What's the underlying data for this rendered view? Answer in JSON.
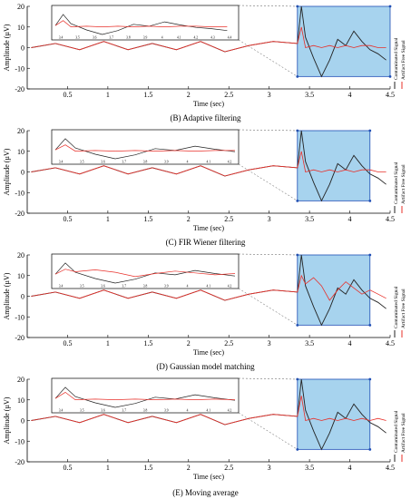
{
  "figure": {
    "panels": [
      {
        "caption": "(B) Adaptive filtering"
      },
      {
        "caption": "(C) FIR Wiener filtering"
      },
      {
        "caption": "(D) Gaussian model matching"
      },
      {
        "caption": "(E) Moving average"
      }
    ]
  },
  "chart_data": [
    {
      "type": "line",
      "title": "(B) Adaptive filtering",
      "xlabel": "Time (sec)",
      "ylabel": "Amplitude (µV)",
      "xlim": [
        0,
        4.5
      ],
      "ylim": [
        -20,
        20
      ],
      "xticks": [
        0.5,
        1,
        1.5,
        2,
        2.5,
        3,
        3.5,
        4,
        4.5
      ],
      "yticks": [
        -20,
        -10,
        0,
        10,
        20
      ],
      "legend": {
        "placement": "right-vertical",
        "entries": [
          "Contaminated Signal",
          "Artifact Free Signal"
        ]
      },
      "inset": {
        "xlim": [
          3.35,
          4.5
        ],
        "colors": {
          "zoom_box": "#a7d3ee"
        },
        "tick_labels": [
          "3.4",
          "3.5",
          "3.6",
          "3.7",
          "3.8",
          "3.9",
          "4",
          "4.1",
          "4.2",
          "4.3",
          "4.4"
        ]
      },
      "series": [
        {
          "name": "Contaminated Signal",
          "color": "#222222",
          "x": [
            0.05,
            0.35,
            0.65,
            0.95,
            1.25,
            1.55,
            1.85,
            2.15,
            2.45,
            2.75,
            3.05,
            3.35,
            3.4,
            3.45,
            3.55,
            3.65,
            3.75,
            3.85,
            3.95,
            4.05,
            4.15,
            4.25,
            4.35,
            4.45
          ],
          "y": [
            0,
            2,
            -1,
            3,
            -1,
            2,
            -1,
            3,
            -2,
            1,
            3,
            2,
            20,
            5,
            -5,
            -14,
            -6,
            4,
            1,
            8,
            3,
            -1,
            -3,
            -6
          ]
        },
        {
          "name": "Artifact Free Signal",
          "color": "#e8302a",
          "x": [
            0.05,
            0.35,
            0.65,
            0.95,
            1.25,
            1.55,
            1.85,
            2.15,
            2.45,
            2.75,
            3.05,
            3.35,
            3.4,
            3.45,
            3.55,
            3.65,
            3.75,
            3.85,
            3.95,
            4.05,
            4.15,
            4.25,
            4.35,
            4.45
          ],
          "y": [
            0,
            2,
            -1,
            3,
            -1,
            2,
            -1,
            3,
            -2,
            1,
            3,
            2,
            10,
            0,
            1,
            0,
            1,
            0,
            1,
            0,
            1,
            1,
            0,
            0
          ]
        }
      ]
    },
    {
      "type": "line",
      "title": "(C) FIR Wiener filtering",
      "xlabel": "Time (sec)",
      "ylabel": "Amplitude (µV)",
      "xlim": [
        0,
        4.5
      ],
      "ylim": [
        -20,
        20
      ],
      "xticks": [
        0.5,
        1,
        1.5,
        2,
        2.5,
        3,
        3.5,
        4,
        4.5
      ],
      "yticks": [
        -20,
        -10,
        0,
        10,
        20
      ],
      "legend": {
        "placement": "right-vertical",
        "entries": [
          "Contaminated Signal",
          "Artifact Free Signal"
        ]
      },
      "inset": {
        "xlim": [
          3.35,
          4.25
        ],
        "colors": {
          "zoom_box": "#a7d3ee"
        },
        "tick_labels": [
          "3.4",
          "3.5",
          "3.6",
          "3.7",
          "3.8",
          "3.9",
          "4",
          "4.1",
          "4.2"
        ]
      },
      "series": [
        {
          "name": "Contaminated Signal",
          "color": "#222222",
          "x": [
            0.05,
            0.35,
            0.65,
            0.95,
            1.25,
            1.55,
            1.85,
            2.15,
            2.45,
            2.75,
            3.05,
            3.35,
            3.4,
            3.45,
            3.55,
            3.65,
            3.75,
            3.85,
            3.95,
            4.05,
            4.15,
            4.25,
            4.35,
            4.45
          ],
          "y": [
            0,
            2,
            -1,
            3,
            -1,
            2,
            -1,
            3,
            -2,
            1,
            3,
            2,
            20,
            5,
            -5,
            -14,
            -6,
            4,
            1,
            8,
            3,
            -1,
            -3,
            -6
          ]
        },
        {
          "name": "Artifact Free Signal",
          "color": "#e8302a",
          "x": [
            0.05,
            0.35,
            0.65,
            0.95,
            1.25,
            1.55,
            1.85,
            2.15,
            2.45,
            2.75,
            3.05,
            3.35,
            3.4,
            3.45,
            3.55,
            3.65,
            3.75,
            3.85,
            3.95,
            4.05,
            4.15,
            4.25,
            4.35,
            4.45
          ],
          "y": [
            0,
            2,
            -1,
            3,
            -1,
            2,
            -1,
            3,
            -2,
            1,
            3,
            2,
            10,
            0,
            1,
            0,
            1,
            0,
            1,
            0,
            1,
            1,
            0,
            0
          ]
        }
      ]
    },
    {
      "type": "line",
      "title": "(D) Gaussian model matching",
      "xlabel": "Time (sec)",
      "ylabel": "Amplitude (µV)",
      "xlim": [
        0,
        4.5
      ],
      "ylim": [
        -20,
        20
      ],
      "xticks": [
        0.5,
        1,
        1.5,
        2,
        2.5,
        3,
        3.5,
        4,
        4.5
      ],
      "yticks": [
        -20,
        -10,
        0,
        10,
        20
      ],
      "legend": {
        "placement": "right-vertical",
        "entries": [
          "Contaminated Signal",
          "Artifact Free Signal"
        ]
      },
      "inset": {
        "xlim": [
          3.35,
          4.25
        ],
        "colors": {
          "zoom_box": "#a7d3ee"
        },
        "tick_labels": [
          "3.4",
          "3.5",
          "3.6",
          "3.7",
          "3.8",
          "3.9",
          "4",
          "4.1",
          "4.2"
        ]
      },
      "series": [
        {
          "name": "Contaminated Signal",
          "color": "#222222",
          "x": [
            0.05,
            0.35,
            0.65,
            0.95,
            1.25,
            1.55,
            1.85,
            2.15,
            2.45,
            2.75,
            3.05,
            3.35,
            3.4,
            3.45,
            3.55,
            3.65,
            3.75,
            3.85,
            3.95,
            4.05,
            4.15,
            4.25,
            4.35,
            4.45
          ],
          "y": [
            0,
            2,
            -1,
            3,
            -1,
            2,
            -1,
            3,
            -2,
            1,
            3,
            2,
            20,
            5,
            -5,
            -14,
            -6,
            4,
            1,
            8,
            3,
            -1,
            -3,
            -6
          ]
        },
        {
          "name": "Artifact Free Signal",
          "color": "#e8302a",
          "x": [
            0.05,
            0.35,
            0.65,
            0.95,
            1.25,
            1.55,
            1.85,
            2.15,
            2.45,
            2.75,
            3.05,
            3.35,
            3.4,
            3.45,
            3.55,
            3.65,
            3.75,
            3.85,
            3.95,
            4.05,
            4.15,
            4.25,
            4.35,
            4.45
          ],
          "y": [
            0,
            2,
            -1,
            3,
            -1,
            2,
            -1,
            3,
            -2,
            1,
            3,
            2,
            10,
            6,
            9,
            5,
            -2,
            3,
            7,
            4,
            1,
            3,
            1,
            -1
          ]
        }
      ]
    },
    {
      "type": "line",
      "title": "(E) Moving average",
      "xlabel": "Time (sec)",
      "ylabel": "Amplitude (µV)",
      "xlim": [
        0,
        4.5
      ],
      "ylim": [
        -20,
        20
      ],
      "xticks": [
        0.5,
        1,
        1.5,
        2,
        2.5,
        3,
        3.5,
        4,
        4.5
      ],
      "yticks": [
        -20,
        -10,
        0,
        10,
        20
      ],
      "legend": {
        "placement": "right-vertical",
        "entries": [
          "Contaminated Signal",
          "Artifact Free Signal"
        ]
      },
      "inset": {
        "xlim": [
          3.35,
          4.25
        ],
        "colors": {
          "zoom_box": "#a7d3ee"
        },
        "tick_labels": [
          "3.4",
          "3.5",
          "3.6",
          "3.7",
          "3.8",
          "3.9",
          "4",
          "4.1",
          "4.2"
        ]
      },
      "series": [
        {
          "name": "Contaminated Signal",
          "color": "#222222",
          "x": [
            0.05,
            0.35,
            0.65,
            0.95,
            1.25,
            1.55,
            1.85,
            2.15,
            2.45,
            2.75,
            3.05,
            3.35,
            3.4,
            3.45,
            3.55,
            3.65,
            3.75,
            3.85,
            3.95,
            4.05,
            4.15,
            4.25,
            4.35,
            4.45
          ],
          "y": [
            0,
            2,
            -1,
            3,
            -1,
            2,
            -1,
            3,
            -2,
            1,
            3,
            2,
            20,
            5,
            -5,
            -14,
            -6,
            4,
            1,
            8,
            3,
            -1,
            -3,
            -6
          ]
        },
        {
          "name": "Artifact Free Signal",
          "color": "#e8302a",
          "x": [
            0.05,
            0.35,
            0.65,
            0.95,
            1.25,
            1.55,
            1.85,
            2.15,
            2.45,
            2.75,
            3.05,
            3.35,
            3.4,
            3.45,
            3.55,
            3.65,
            3.75,
            3.85,
            3.95,
            4.05,
            4.15,
            4.25,
            4.35,
            4.45
          ],
          "y": [
            0,
            2,
            -1,
            3,
            -1,
            2,
            -1,
            3,
            -2,
            1,
            3,
            2,
            12,
            0,
            1,
            0,
            1,
            0,
            1,
            0,
            1,
            0,
            1,
            0
          ]
        }
      ]
    }
  ]
}
